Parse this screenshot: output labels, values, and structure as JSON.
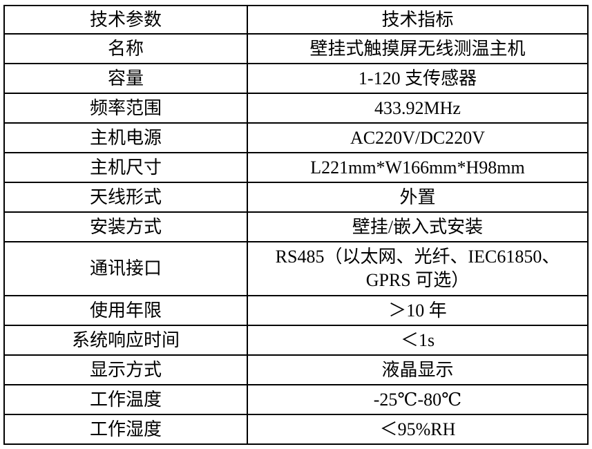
{
  "table": {
    "header": {
      "param": "技术参数",
      "value": "技术指标"
    },
    "rows": [
      {
        "param": "名称",
        "value": "壁挂式触摸屏无线测温主机"
      },
      {
        "param": "容量",
        "value": "1-120 支传感器"
      },
      {
        "param": "频率范围",
        "value": "433.92MHz"
      },
      {
        "param": "主机电源",
        "value": "AC220V/DC220V"
      },
      {
        "param": "主机尺寸",
        "value": "L221mm*W166mm*H98mm"
      },
      {
        "param": "天线形式",
        "value": "外置"
      },
      {
        "param": "安装方式",
        "value": "壁挂/嵌入式安装"
      },
      {
        "param": "通讯接口",
        "value": "RS485（以太网、光纤、IEC61850、GPRS 可选）",
        "value_line1": "RS485（以太网、光纤、IEC61850、",
        "value_line2": "GPRS 可选）"
      },
      {
        "param": "使用年限",
        "value": "＞10 年"
      },
      {
        "param": "系统响应时间",
        "value": "＜1s"
      },
      {
        "param": "显示方式",
        "value": "液晶显示"
      },
      {
        "param": "工作温度",
        "value": "-25℃-80℃"
      },
      {
        "param": "工作湿度",
        "value": "＜95%RH"
      }
    ],
    "colors": {
      "border": "#000000",
      "text": "#000000",
      "background": "#ffffff"
    }
  }
}
